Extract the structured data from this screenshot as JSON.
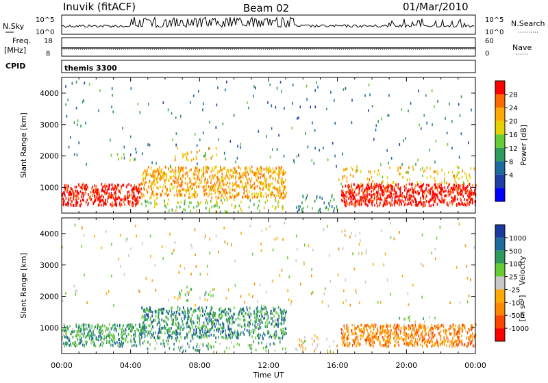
{
  "header": {
    "station": "Inuvik (fitACF)",
    "beam": "Beam 02",
    "date": "01/Mar/2010"
  },
  "panels": {
    "nsky": {
      "label": "N.Sky",
      "ticks": [
        "10^5",
        "10^0"
      ]
    },
    "nsearch": {
      "label": "N.Search",
      "ticks": [
        "10^5",
        "10^0"
      ]
    },
    "freq": {
      "label_line1": "Freq.",
      "label_line2": "[MHz]",
      "ticks": [
        "18",
        "8"
      ]
    },
    "nave": {
      "label": "Nave",
      "ticks": [
        "60",
        "0"
      ]
    },
    "cpid": {
      "label": "CPID",
      "value": "themis 3300"
    }
  },
  "chart_data": [
    {
      "type": "heatmap",
      "panel": "power",
      "ylabel": "Slant Range [km]",
      "xlabel": "",
      "x_ticks": [
        "00:00",
        "04:00",
        "08:00",
        "12:00",
        "16:00",
        "20:00",
        "00:00"
      ],
      "y_ticks": [
        1000,
        2000,
        3000,
        4000
      ],
      "xlim_hours": [
        0,
        24
      ],
      "ylim_km": [
        180,
        4500
      ],
      "colorbar": {
        "label": "Power [dB]",
        "ticks": [
          "28",
          "24",
          "20",
          "16",
          "12",
          "8",
          "4"
        ],
        "colors": [
          "#ff0000",
          "#ff6a00",
          "#ffaa00",
          "#e6d200",
          "#66cc33",
          "#2f9b5a",
          "#1e6b9e",
          "#1f3fa8",
          "#0000ff"
        ]
      },
      "scatter_regions": [
        {
          "t0": 0.0,
          "t1": 4.6,
          "r0": 500,
          "r1": 1100,
          "level": "high"
        },
        {
          "t0": 4.6,
          "t1": 13.0,
          "r0": 700,
          "r1": 1700,
          "level": "mixed"
        },
        {
          "t0": 16.2,
          "t1": 24.0,
          "r0": 500,
          "r1": 1100,
          "level": "high"
        }
      ]
    },
    {
      "type": "heatmap",
      "panel": "velocity",
      "ylabel": "Slant Range [km]",
      "xlabel": "Time UT",
      "x_ticks": [
        "00:00",
        "04:00",
        "08:00",
        "12:00",
        "16:00",
        "20:00",
        "00:00"
      ],
      "y_ticks": [
        1000,
        2000,
        3000,
        4000
      ],
      "xlim_hours": [
        0,
        24
      ],
      "ylim_km": [
        180,
        4500
      ],
      "colorbar": {
        "label": "Velocity",
        "label_unit": "[m s⁻¹]",
        "ticks": [
          "1000",
          "500",
          "100",
          "25",
          "-25",
          "-100",
          "-500",
          "-1000"
        ],
        "colors": [
          "#1a3aa0",
          "#1e6b9e",
          "#2f9b5a",
          "#66cc33",
          "#c8c8c8",
          "#ffaa00",
          "#ff8800",
          "#ff4400",
          "#ff0000"
        ]
      }
    }
  ]
}
